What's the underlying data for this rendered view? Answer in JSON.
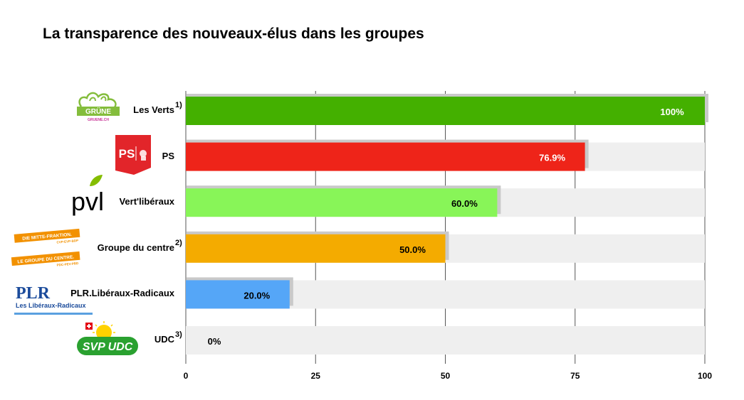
{
  "title": "La transparence des nouveaux-élus dans les groupes",
  "chart_data": {
    "type": "bar",
    "orientation": "horizontal",
    "title": "La transparence des nouveaux-élus dans les groupes",
    "xlabel": "",
    "ylabel": "",
    "xlim": [
      0,
      100
    ],
    "xticks": [
      0,
      25,
      50,
      75,
      100
    ],
    "grid": true,
    "categories": [
      "Les Verts",
      "PS",
      "Vert'libéraux",
      "Groupe du centre",
      "PLR.Libéraux-Radicaux",
      "UDC"
    ],
    "values": [
      100,
      76.9,
      60.0,
      50.0,
      20.0,
      0
    ],
    "value_labels": [
      "100%",
      "76.9%",
      "60.0%",
      "50.0%",
      "20.0%",
      "0%"
    ],
    "footnotes": [
      "1)",
      "",
      "",
      "2)",
      "",
      "3)"
    ],
    "colors": [
      "#44b000",
      "#ee2419",
      "#88f558",
      "#f4ab00",
      "#55a6f7",
      "#2aa130"
    ],
    "track_color": "#efefef",
    "value_label_colors": [
      "#ffffff",
      "#ffffff",
      "#000000",
      "#000000",
      "#000000",
      "#000000"
    ]
  },
  "logos": {
    "gruene": {
      "text": "GRÜNE",
      "subtext": "GRUENE.CH",
      "color": "#84bd3c"
    },
    "ps": {
      "text": "PS",
      "color": "#e2252a"
    },
    "pvl": {
      "text": "pvl",
      "color": "#84bd00"
    },
    "centre": {
      "line1": "DIE MITTE-FRAKTION.",
      "line1b": "CVP-EVP-BDP",
      "line2": "LE GROUPE DU CENTRE.",
      "line2b": "PDC-PEV-PBD",
      "color": "#f29100"
    },
    "plr": {
      "text": "PLR",
      "subtext": "Les Libéraux-Radicaux",
      "color": "#1b4b9b",
      "underline": "#5aa0e0"
    },
    "udc": {
      "text": "SVP UDC",
      "color": "#2aa130",
      "sun": "#ffd200"
    }
  }
}
